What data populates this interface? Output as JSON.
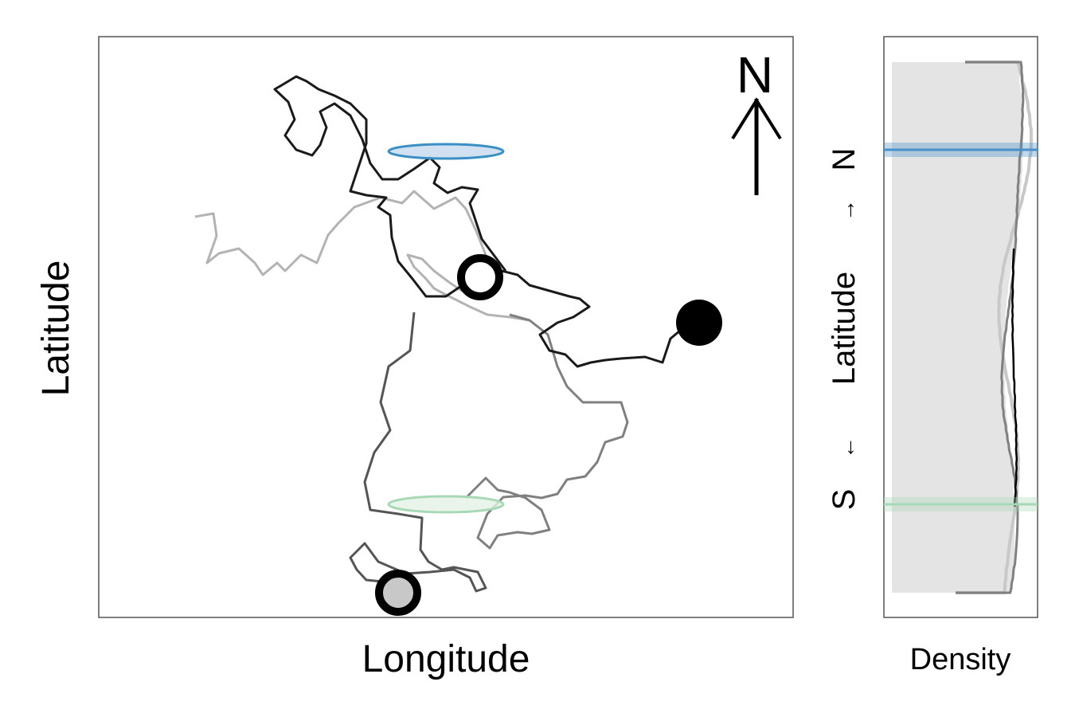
{
  "chart_data": [
    {
      "type": "line",
      "title": "",
      "xlabel": "Longitude",
      "ylabel": "Latitude",
      "north_arrow_label": "N",
      "axis_ticks": "none",
      "grid": false,
      "description_note": "Animal movement tracks; three grey-toned track segments with start/end point markers and two seasonal range ellipses.",
      "series": [
        {
          "color": "#b3b3b3",
          "points": [
            [
              245,
              272
            ],
            [
              268,
              268
            ],
            [
              272,
              296
            ],
            [
              260,
              330
            ],
            [
              275,
              318
            ],
            [
              300,
              312
            ],
            [
              320,
              330
            ],
            [
              330,
              345
            ],
            [
              348,
              330
            ],
            [
              358,
              340
            ],
            [
              378,
              320
            ],
            [
              398,
              330
            ],
            [
              412,
              295
            ],
            [
              425,
              280
            ],
            [
              445,
              260
            ],
            [
              478,
              248
            ],
            [
              505,
              255
            ],
            [
              520,
              240
            ],
            [
              545,
              262
            ],
            [
              572,
              248
            ],
            [
              585,
              262
            ],
            [
              598,
              290
            ],
            [
              612,
              325
            ],
            [
              600,
              345
            ],
            [
              580,
              365
            ],
            [
              565,
              355
            ],
            [
              545,
              340
            ],
            [
              530,
              325
            ],
            [
              512,
              320
            ],
            [
              520,
              335
            ],
            [
              535,
              350
            ],
            [
              545,
              362
            ],
            [
              560,
              370
            ],
            [
              590,
              385
            ],
            [
              612,
              395
            ],
            [
              640,
              398
            ],
            [
              665,
              402
            ]
          ]
        },
        {
          "color": "#808080",
          "points": [
            [
              640,
              395
            ],
            [
              665,
              402
            ],
            [
              688,
              420
            ],
            [
              700,
              460
            ],
            [
              712,
              485
            ],
            [
              732,
              505
            ],
            [
              780,
              505
            ],
            [
              788,
              530
            ],
            [
              782,
              548
            ],
            [
              760,
              555
            ],
            [
              750,
              580
            ],
            [
              735,
              598
            ],
            [
              712,
              602
            ],
            [
              700,
              620
            ],
            [
              680,
              625
            ],
            [
              660,
              622
            ],
            [
              632,
              624
            ],
            [
              612,
              645
            ],
            [
              600,
              675
            ],
            [
              615,
              688
            ],
            [
              625,
              672
            ],
            [
              650,
              668
            ],
            [
              668,
              670
            ],
            [
              690,
              665
            ],
            [
              680,
              640
            ],
            [
              660,
              625
            ],
            [
              640,
              618
            ],
            [
              625,
              615
            ],
            [
              610,
              600
            ],
            [
              585,
              625
            ]
          ]
        },
        {
          "color": "#555555",
          "points": [
            [
              520,
              392
            ],
            [
              515,
              440
            ],
            [
              488,
              460
            ],
            [
              478,
              505
            ],
            [
              490,
              540
            ],
            [
              470,
              568
            ],
            [
              458,
              605
            ],
            [
              465,
              640
            ],
            [
              500,
              645
            ],
            [
              530,
              650
            ],
            [
              528,
              690
            ],
            [
              538,
              705
            ],
            [
              555,
              715
            ],
            [
              570,
              712
            ],
            [
              600,
              718
            ],
            [
              610,
              738
            ],
            [
              598,
              742
            ],
            [
              590,
              725
            ],
            [
              570,
              715
            ],
            [
              540,
              718
            ],
            [
              510,
              720
            ],
            [
              475,
              705
            ],
            [
              458,
              682
            ],
            [
              440,
              700
            ],
            [
              448,
              715
            ],
            [
              460,
              728
            ],
            [
              480,
              730
            ],
            [
              500,
              742
            ]
          ]
        },
        {
          "color": "#1a1a1a",
          "points": [
            [
              878,
              405
            ],
            [
              860,
              410
            ],
            [
              842,
              425
            ],
            [
              832,
              455
            ],
            [
              810,
              448
            ],
            [
              780,
              450
            ],
            [
              760,
              452
            ],
            [
              742,
              455
            ],
            [
              725,
              460
            ],
            [
              710,
              445
            ],
            [
              690,
              440
            ],
            [
              678,
              420
            ],
            [
              700,
              405
            ],
            [
              720,
              398
            ],
            [
              740,
              385
            ],
            [
              728,
              375
            ],
            [
              715,
              372
            ],
            [
              690,
              365
            ],
            [
              665,
              358
            ],
            [
              650,
              345
            ],
            [
              630,
              340
            ],
            [
              605,
              345
            ],
            [
              585,
              355
            ],
            [
              560,
              372
            ],
            [
              535,
              372
            ],
            [
              518,
              350
            ],
            [
              500,
              328
            ],
            [
              492,
              298
            ],
            [
              490,
              270
            ],
            [
              475,
              260
            ],
            [
              485,
              248
            ],
            [
              460,
              245
            ],
            [
              440,
              240
            ],
            [
              450,
              210
            ],
            [
              460,
              180
            ],
            [
              460,
              150
            ],
            [
              440,
              130
            ],
            [
              420,
              120
            ],
            [
              400,
              112
            ],
            [
              385,
              102
            ],
            [
              372,
              96
            ],
            [
              352,
              108
            ],
            [
              345,
              112
            ],
            [
              362,
              128
            ],
            [
              370,
              150
            ],
            [
              358,
              170
            ],
            [
              372,
              188
            ],
            [
              392,
              195
            ],
            [
              402,
              182
            ],
            [
              410,
              160
            ],
            [
              402,
              140
            ],
            [
              420,
              130
            ],
            [
              440,
              145
            ],
            [
              455,
              175
            ],
            [
              465,
              205
            ],
            [
              480,
              225
            ],
            [
              500,
              225
            ],
            [
              520,
              212
            ],
            [
              540,
              198
            ],
            [
              552,
              210
            ],
            [
              545,
              230
            ],
            [
              562,
              242
            ],
            [
              580,
              235
            ],
            [
              600,
              238
            ],
            [
              590,
              255
            ],
            [
              605,
              300
            ],
            [
              620,
              320
            ],
            [
              635,
              340
            ]
          ]
        }
      ],
      "markers": [
        {
          "name": "start-point",
          "x": 878,
          "y": 405,
          "fill": "#000000",
          "stroke": "#000000"
        },
        {
          "name": "waypoint-white",
          "x": 603,
          "y": 348,
          "fill": "#ffffff",
          "stroke": "#000000"
        },
        {
          "name": "end-point-grey",
          "x": 500,
          "y": 744,
          "fill": "#c8c8c8",
          "stroke": "#000000"
        }
      ],
      "ellipses": [
        {
          "name": "north-range",
          "cx": 560,
          "cy": 190,
          "rx": 72,
          "ry": 9,
          "fill": "#c6d9ee",
          "stroke": "#3a8fc4"
        },
        {
          "name": "south-range",
          "cx": 560,
          "cy": 633,
          "rx": 72,
          "ry": 10,
          "fill": "#e3f2e6",
          "stroke": "#a8d8b6"
        }
      ]
    },
    {
      "type": "area",
      "xlabel": "Density",
      "ylabel": "Latitude",
      "ylabel_south": "S",
      "ylabel_north": "N",
      "ylabel_arrow_left": "←",
      "ylabel_arrow_right": "→",
      "orientation": "vertical",
      "north_band_lat": 188,
      "south_band_lat": 633,
      "colors": {
        "band_north": "#4a90c8",
        "band_south": "#a8d8b6",
        "fill": "#e4e4e4",
        "curve_dark": "#000000",
        "curve_mid": "#808080",
        "curve_light": "#c8c8c8"
      }
    }
  ]
}
